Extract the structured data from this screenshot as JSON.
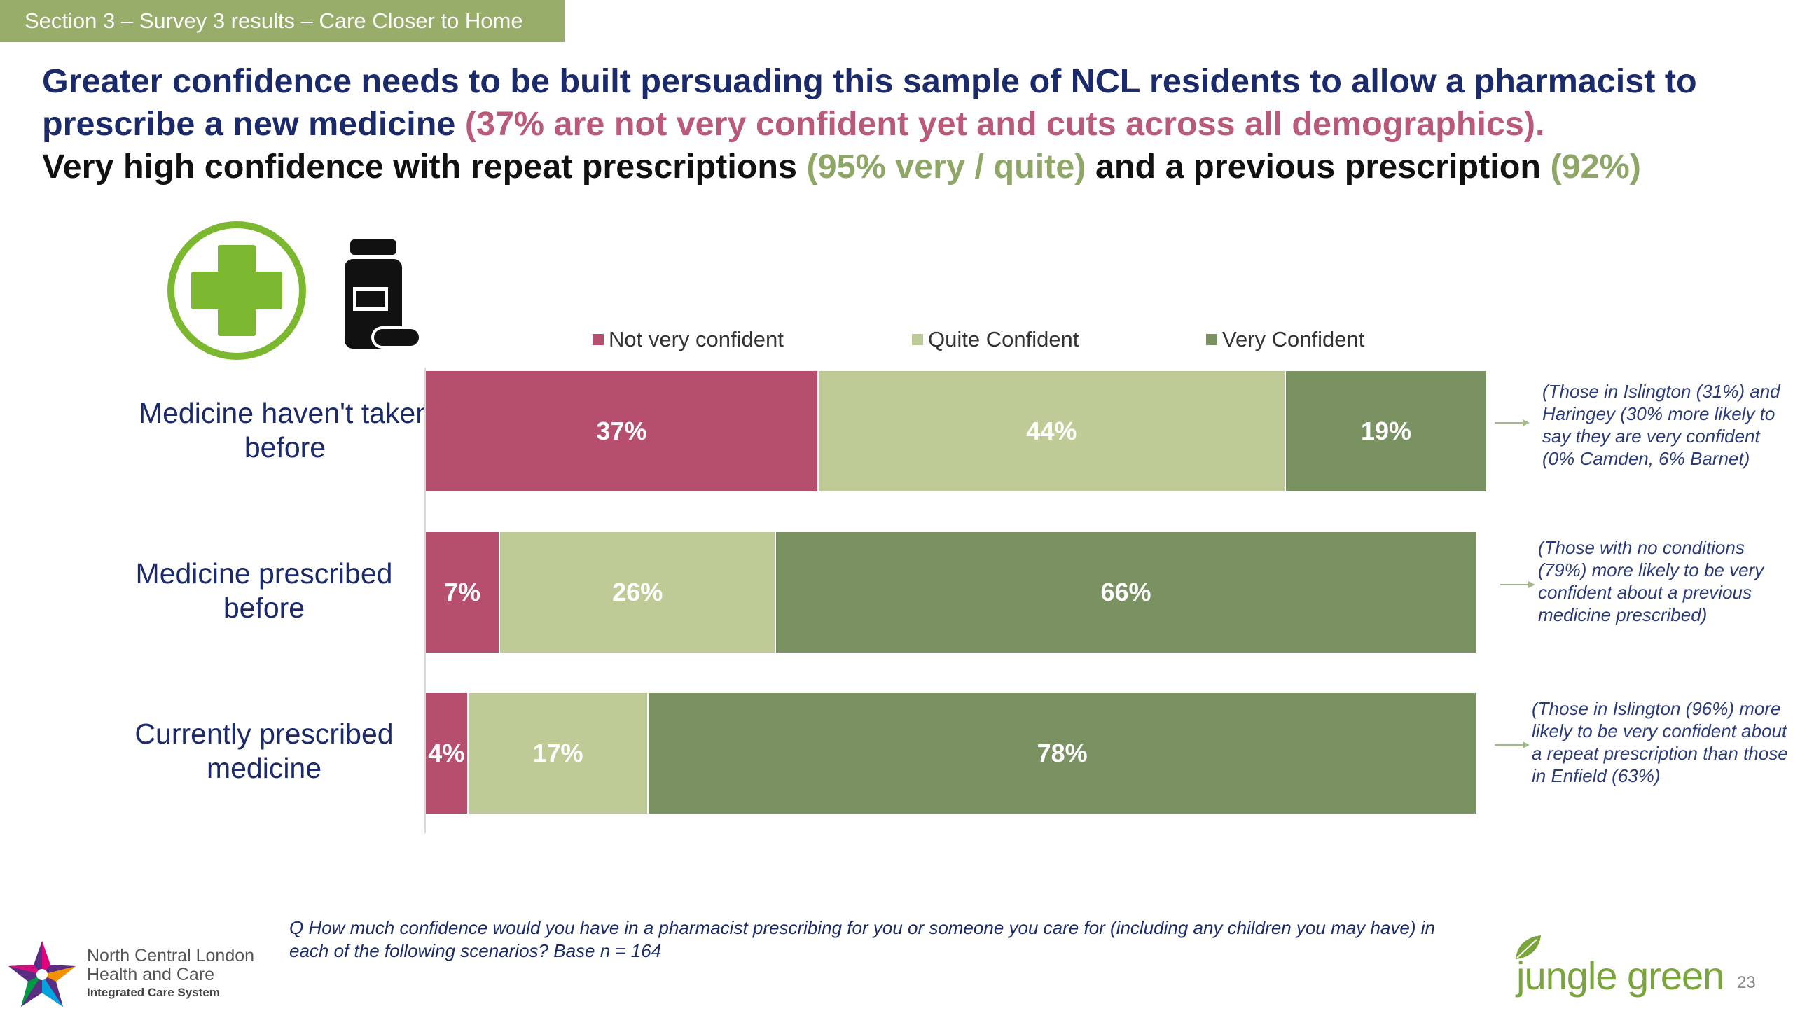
{
  "section_tab": "Section 3 – Survey 3 results – Care Closer to Home",
  "headline": {
    "part1": "Greater confidence needs to be built persuading this sample of NCL residents to allow a pharmacist to prescribe a new medicine",
    "part2": "(37% are not very confident yet and cuts across all demographics).",
    "part3": "Very high confidence with repeat prescriptions",
    "part4": "(95% very / quite)",
    "part5": "and a previous prescription",
    "part6": "(92%)"
  },
  "icons": [
    "medical-cross-icon",
    "medicine-bottle-icon"
  ],
  "colors": {
    "not_very": "#b54f6d",
    "quite": "#bfcb96",
    "very": "#7a9262",
    "navy": "#1b2a6b",
    "tab": "#98ad6a"
  },
  "chart_data": {
    "type": "bar",
    "orientation": "horizontal",
    "stacked": true,
    "normalized": true,
    "legend_position": "top",
    "categories": [
      "Medicine haven't taken before",
      "Medicine prescribed before",
      "Currently prescribed medicine"
    ],
    "series": [
      {
        "name": "Not very confident",
        "values": [
          37,
          7,
          4
        ],
        "labels": [
          "37%",
          "7%",
          "4%"
        ],
        "color": "#b54f6d"
      },
      {
        "name": "Quite Confident",
        "values": [
          44,
          26,
          17
        ],
        "labels": [
          "44%",
          "26%",
          "17%"
        ],
        "color": "#bfcb96"
      },
      {
        "name": "Very Confident",
        "values": [
          19,
          66,
          78
        ],
        "labels": [
          "19%",
          "66%",
          "78%"
        ],
        "color": "#7a9262"
      }
    ],
    "xlim": [
      0,
      100
    ],
    "grid": false
  },
  "notes": [
    "(Those in Islington (31%) and Haringey (30% more likely to say they are very confident (0% Camden, 6% Barnet)",
    "(Those with no conditions (79%) more likely to be very confident about a previous medicine prescribed)",
    "(Those in Islington (96%) more likely to be very confident about a repeat prescription than those in Enfield (63%)"
  ],
  "question": "Q How much confidence would you have in a pharmacist prescribing for you or someone you care for (including any children you may have) in each of the following scenarios?  Base n = 164",
  "ncl_logo": {
    "line1": "North Central London",
    "line2": "Health and Care",
    "line3": "Integrated Care System"
  },
  "jg_logo": "jungle green",
  "page_number": "23"
}
